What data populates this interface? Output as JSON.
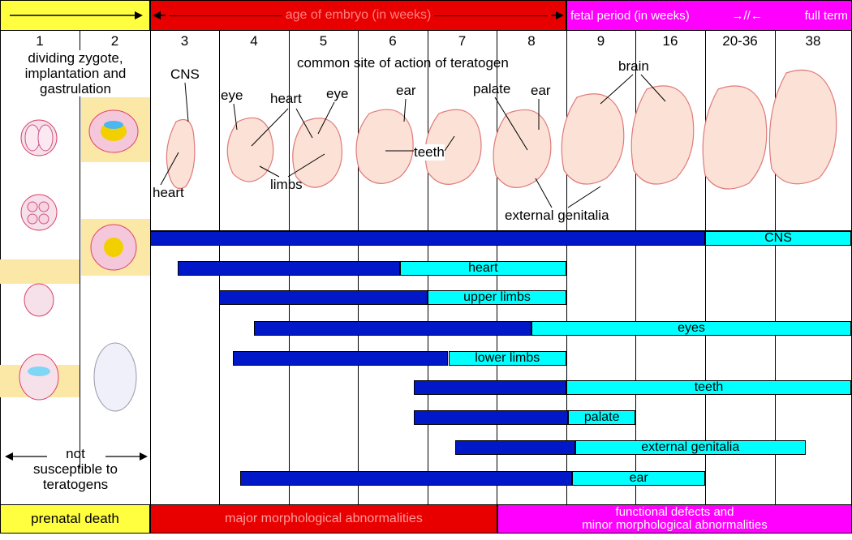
{
  "header": {
    "embryo_age": "age of embryo (in weeks)",
    "fetal_period": "fetal period (in weeks)",
    "full_term": "full term"
  },
  "weeks": [
    "1",
    "2",
    "3",
    "4",
    "5",
    "6",
    "7",
    "8",
    "9",
    "16",
    "20-36",
    "38"
  ],
  "stage_text": {
    "line1": "dividing zygote,",
    "line2": "implantation and",
    "line3": "gastrulation"
  },
  "anatomy": {
    "cns": "CNS",
    "heart_top": "heart",
    "heart_left": "heart",
    "eye_1": "eye",
    "eye_2": "eye",
    "ear_1": "ear",
    "ear_2": "ear",
    "palate": "palate",
    "teeth": "teeth",
    "limbs": "limbs",
    "brain": "brain",
    "external_genitalia": "external genitalia",
    "common_site": "common site of action of teratogen"
  },
  "not_susceptible": {
    "line1": "not",
    "line2": "susceptible to",
    "line3": "teratogens"
  },
  "bars": [
    {
      "label": "CNS",
      "dark": [
        3,
        20
      ],
      "light": [
        20,
        39
      ]
    },
    {
      "label": "heart",
      "dark": [
        3.4,
        6.6
      ],
      "light": [
        6.6,
        9
      ]
    },
    {
      "label": "upper limbs",
      "dark": [
        4,
        7
      ],
      "light": [
        7,
        9
      ]
    },
    {
      "label": "eyes",
      "dark": [
        4.5,
        8.5
      ],
      "light": [
        8.5,
        39
      ]
    },
    {
      "label": "lower limbs",
      "dark": [
        4.2,
        7.3
      ],
      "light": [
        7.3,
        9
      ]
    },
    {
      "label": "teeth",
      "dark": [
        6.8,
        9
      ],
      "light": [
        9,
        39
      ]
    },
    {
      "label": "palate",
      "dark": [
        6.8,
        9.2
      ],
      "light": [
        9.2,
        16
      ]
    },
    {
      "label": "external genitalia",
      "dark": [
        7.4,
        9.9
      ],
      "light": [
        9.9,
        38.4
      ]
    },
    {
      "label": "ear",
      "dark": [
        4.3,
        9.6
      ],
      "light": [
        9.6,
        20
      ]
    }
  ],
  "footer": {
    "prenatal_death": "prenatal death",
    "major": "major morphological abnormalities",
    "functional_line1": "functional defects and",
    "functional_line2": "minor morphological abnormalities"
  },
  "colors": {
    "yellow": "#ffff40",
    "red": "#e80000",
    "magenta": "#ff00ff",
    "dark_bar": "#0018c8",
    "light_bar": "#00ffff",
    "cell_text_red": "#e80000"
  },
  "icons": [
    "arrow-left-icon",
    "arrow-right-icon",
    "embryo-illustration",
    "zygote-illustration"
  ]
}
